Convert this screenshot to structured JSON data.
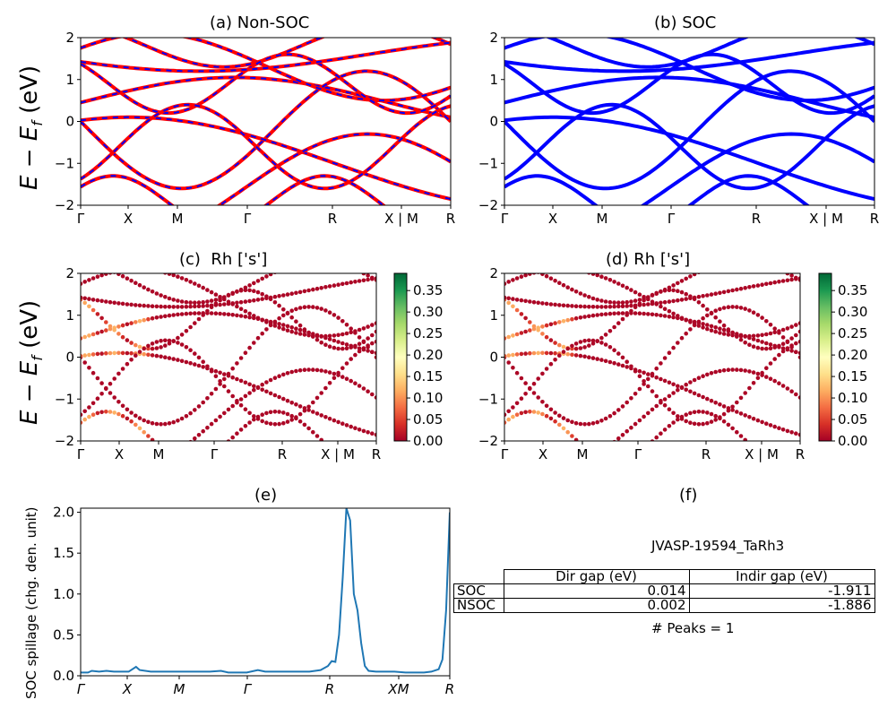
{
  "chart_data": [
    {
      "type": "line",
      "title": "(a) Non-SOC",
      "ylabel": "E − E_f (eV)",
      "ylim": [
        -2,
        2
      ],
      "y_ticks": [
        "−2",
        "−1",
        "0",
        "1",
        "2"
      ],
      "x_ticks": [
        "Γ",
        "X",
        "M",
        "Γ",
        "R",
        "X | M",
        "R"
      ],
      "series": [
        {
          "color": "#ff0000",
          "dash_color": "#0000ff",
          "x": [
            0,
            0.5,
            1,
            1.5,
            2,
            2.5,
            3,
            3.5,
            4,
            4.5,
            5
          ],
          "y": [
            0.45,
            0.42,
            0.3,
            0.1,
            -0.2,
            -0.5,
            -0.3,
            0.0,
            0.3,
            0.1,
            -0.2
          ]
        }
      ]
    },
    {
      "type": "line",
      "title": "(b) SOC",
      "ylim": [
        -2,
        2
      ],
      "y_ticks": [
        "−2",
        "−1",
        "0",
        "1",
        "2"
      ],
      "x_ticks": [
        "Γ",
        "X",
        "M",
        "Γ",
        "R",
        "X | M",
        "R"
      ],
      "series": [
        {
          "color": "#0000ff",
          "x": [
            0,
            0.5,
            1,
            1.5,
            2,
            2.5,
            3,
            3.5,
            4,
            4.5,
            5
          ],
          "y": [
            0.45,
            0.42,
            0.3,
            0.1,
            -0.2,
            -0.5,
            -0.3,
            0.0,
            0.3,
            0.1,
            -0.2
          ]
        }
      ]
    },
    {
      "type": "scatter",
      "title": "(c)  Rh ['s']",
      "ylabel": "E − E_f (eV)",
      "ylim": [
        -2,
        2
      ],
      "y_ticks": [
        "−2",
        "−1",
        "0",
        "1",
        "2"
      ],
      "x_ticks": [
        "Γ",
        "X",
        "M",
        "Γ",
        "R",
        "X | M",
        "R"
      ],
      "colorbar": {
        "min": 0.0,
        "max": 0.39,
        "ticks": [
          "0.00",
          "0.05",
          "0.10",
          "0.15",
          "0.20",
          "0.25",
          "0.30",
          "0.35"
        ],
        "colormap": "RdYlGn"
      }
    },
    {
      "type": "scatter",
      "title": "(d) Rh ['s']",
      "ylim": [
        -2,
        2
      ],
      "y_ticks": [
        "−2",
        "−1",
        "0",
        "1",
        "2"
      ],
      "x_ticks": [
        "Γ",
        "X",
        "M",
        "Γ",
        "R",
        "X | M",
        "R"
      ],
      "colorbar": {
        "min": 0.0,
        "max": 0.39,
        "ticks": [
          "0.00",
          "0.05",
          "0.10",
          "0.15",
          "0.20",
          "0.25",
          "0.30",
          "0.35"
        ],
        "colormap": "RdYlGn"
      }
    },
    {
      "type": "line",
      "title": "(e)",
      "ylabel": "SOC spillage (chg. den. unit)",
      "ylim": [
        0,
        2.05
      ],
      "y_ticks": [
        "0.0",
        "0.5",
        "1.0",
        "1.5",
        "2.0"
      ],
      "x_ticks": [
        "Γ",
        "X",
        "M",
        "Γ",
        "R",
        "XM",
        "R"
      ],
      "series": [
        {
          "color": "#1f77b4",
          "points": [
            [
              0,
              0.04
            ],
            [
              2,
              0.04
            ],
            [
              3,
              0.06
            ],
            [
              5,
              0.05
            ],
            [
              7,
              0.06
            ],
            [
              9,
              0.05
            ],
            [
              13,
              0.05
            ],
            [
              15,
              0.11
            ],
            [
              16,
              0.07
            ],
            [
              19,
              0.05
            ],
            [
              35,
              0.05
            ],
            [
              38,
              0.06
            ],
            [
              40,
              0.04
            ],
            [
              45,
              0.04
            ],
            [
              48,
              0.07
            ],
            [
              50,
              0.05
            ],
            [
              55,
              0.05
            ],
            [
              62,
              0.05
            ],
            [
              65,
              0.07
            ],
            [
              67,
              0.12
            ],
            [
              68,
              0.18
            ],
            [
              69,
              0.17
            ],
            [
              70,
              0.5
            ],
            [
              71,
              1.2
            ],
            [
              72,
              2.05
            ],
            [
              73,
              1.9
            ],
            [
              74,
              1.0
            ],
            [
              75,
              0.8
            ],
            [
              76,
              0.4
            ],
            [
              77,
              0.12
            ],
            [
              78,
              0.06
            ],
            [
              80,
              0.05
            ],
            [
              85,
              0.05
            ],
            [
              88,
              0.04
            ],
            [
              93,
              0.04
            ],
            [
              95,
              0.05
            ],
            [
              97,
              0.08
            ],
            [
              98,
              0.2
            ],
            [
              99,
              0.8
            ],
            [
              100,
              2.0
            ]
          ]
        }
      ]
    }
  ],
  "panel_f": {
    "title": "(f)",
    "material": "JVASP-19594_TaRh3",
    "table": {
      "headers": [
        "Dir gap (eV)",
        "Indir gap (eV)"
      ],
      "rows": [
        {
          "label": "SOC",
          "dir": "0.014",
          "indir": "-1.911"
        },
        {
          "label": "NSOC",
          "dir": "0.002",
          "indir": "-1.886"
        }
      ]
    },
    "peaks": "# Peaks = 1"
  },
  "colors": {
    "nsoc_line": "#ff0000",
    "nsoc_dash": "#0000ff",
    "soc_line": "#0000ff",
    "spillage": "#1f77b4"
  }
}
